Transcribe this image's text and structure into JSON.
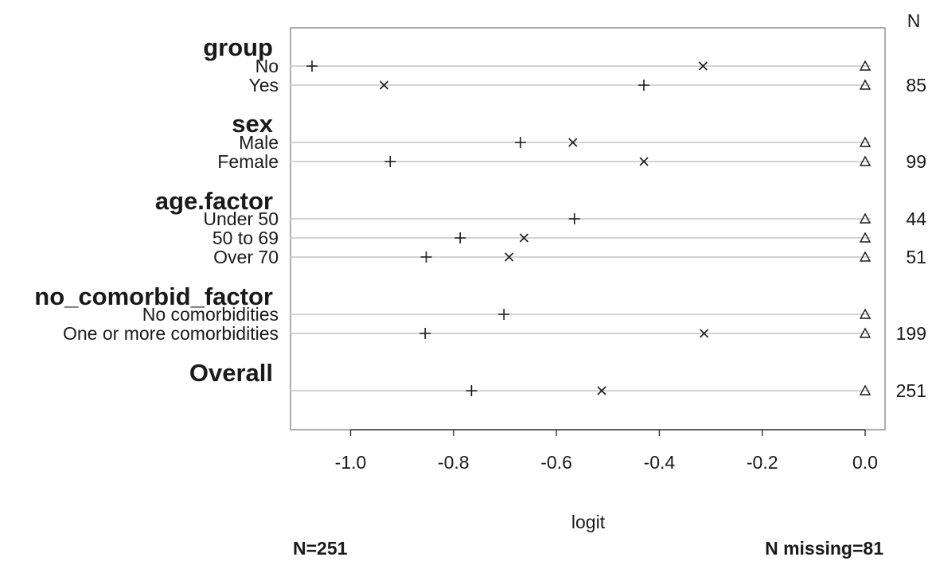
{
  "chart_data": {
    "type": "scatter",
    "xlabel": "logit",
    "xlim": [
      -1.12,
      0.04
    ],
    "x_ticks": [
      -1.0,
      -0.8,
      -0.6,
      -0.4,
      -0.2,
      0.0
    ],
    "x_tick_labels": [
      "-1.0",
      "-0.8",
      "-0.6",
      "-0.4",
      "-0.2",
      "0.0"
    ],
    "n_header": "N",
    "footer_left": "N=251",
    "footer_right": "N missing=81",
    "marker_symbols": [
      "+",
      "x",
      "triangle"
    ],
    "groups": [
      {
        "title": "group",
        "rows": [
          {
            "label": "No",
            "n": "",
            "plus": -1.075,
            "cross": -0.315,
            "tri": 0.0
          },
          {
            "label": "Yes",
            "n": "85",
            "plus": -0.43,
            "cross": -0.935,
            "tri": 0.0
          }
        ]
      },
      {
        "title": "sex",
        "rows": [
          {
            "label": "Male",
            "n": "",
            "plus": -0.67,
            "cross": -0.568,
            "tri": 0.0
          },
          {
            "label": "Female",
            "n": "99",
            "plus": -0.923,
            "cross": -0.43,
            "tri": 0.0
          }
        ]
      },
      {
        "title": "age.factor",
        "rows": [
          {
            "label": "Under 50",
            "n": "44",
            "plus": -0.565,
            "cross": null,
            "tri": 0.0
          },
          {
            "label": "50 to 69",
            "n": "",
            "plus": -0.787,
            "cross": -0.663,
            "tri": 0.0
          },
          {
            "label": "Over 70",
            "n": "51",
            "plus": -0.853,
            "cross": -0.692,
            "tri": 0.0
          }
        ]
      },
      {
        "title": "no_comorbid_factor",
        "rows": [
          {
            "label": "No comorbidities",
            "n": "",
            "plus": -0.702,
            "cross": null,
            "tri": 0.0
          },
          {
            "label": "One or more comorbidities",
            "n": "199",
            "plus": -0.855,
            "cross": -0.313,
            "tri": 0.0
          }
        ]
      },
      {
        "title": "Overall",
        "rows": [
          {
            "label": "",
            "n": "251",
            "plus": -0.765,
            "cross": -0.512,
            "tri": 0.0
          }
        ]
      }
    ]
  }
}
